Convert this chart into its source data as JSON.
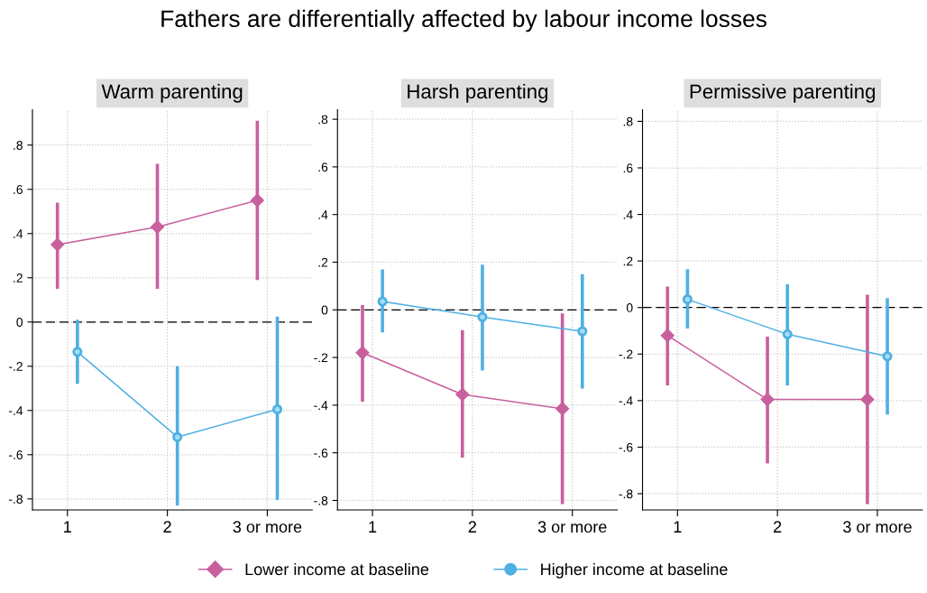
{
  "chart_data": [
    {
      "type": "line",
      "title": "Warm parenting",
      "annotations": [
        "Fathers are differentially affected by labour income losses"
      ],
      "categories": [
        "1",
        "2",
        "3 or more"
      ],
      "ylim": [
        -0.85,
        0.96
      ],
      "yticks": [
        {
          "value": -0.8,
          "label": "-.8"
        },
        {
          "value": -0.6,
          "label": "-.6"
        },
        {
          "value": -0.4,
          "label": "-.4"
        },
        {
          "value": -0.2,
          "label": "-.2"
        },
        0,
        {
          "value": 0.2,
          "label": ".2"
        },
        {
          "value": 0.4,
          "label": ".4"
        },
        {
          "value": 0.6,
          "label": ".6"
        },
        {
          "value": 0.8,
          "label": ".8"
        }
      ],
      "grid": true,
      "legend": "bottom",
      "ref_lines": [
        {
          "axis": "y",
          "value": 0,
          "line_style": "dashed",
          "color": "#000000"
        }
      ],
      "series": [
        {
          "name": "Lower income at baseline",
          "color": "#c8609e",
          "marker": "diamond",
          "values": [
            0.35,
            0.43,
            0.55
          ],
          "errors": [
            [
              0.15,
              0.54
            ],
            [
              0.15,
              0.715
            ],
            [
              0.19,
              0.91
            ]
          ]
        },
        {
          "name": "Higher income at baseline",
          "color": "#4fb0e3",
          "marker": "circle",
          "values": [
            -0.135,
            -0.52,
            -0.395
          ],
          "errors": [
            [
              -0.28,
              0.01
            ],
            [
              -0.83,
              -0.2
            ],
            [
              -0.805,
              0.025
            ]
          ]
        }
      ]
    },
    {
      "type": "line",
      "title": "Harsh parenting",
      "categories": [
        "1",
        "2",
        "3 or more"
      ],
      "ylim": [
        -0.84,
        0.84
      ],
      "yticks": [
        {
          "value": -0.8,
          "label": "-.8"
        },
        {
          "value": -0.6,
          "label": "-.6"
        },
        {
          "value": -0.4,
          "label": "-.4"
        },
        {
          "value": -0.2,
          "label": "-.2"
        },
        0,
        {
          "value": 0.2,
          "label": ".2"
        },
        {
          "value": 0.4,
          "label": ".4"
        },
        {
          "value": 0.6,
          "label": ".6"
        },
        {
          "value": 0.8,
          "label": ".8"
        }
      ],
      "grid": true,
      "ref_lines": [
        {
          "axis": "y",
          "value": 0,
          "line_style": "dashed",
          "color": "#000000"
        }
      ],
      "series": [
        {
          "color": "#c8609e",
          "marker": "diamond",
          "values": [
            -0.18,
            -0.355,
            -0.415
          ],
          "errors": [
            [
              -0.385,
              0.02
            ],
            [
              -0.62,
              -0.085
            ],
            [
              -0.815,
              -0.015
            ]
          ]
        },
        {
          "color": "#4fb0e3",
          "marker": "circle",
          "values": [
            0.035,
            -0.03,
            -0.09
          ],
          "errors": [
            [
              -0.095,
              0.17
            ],
            [
              -0.255,
              0.19
            ],
            [
              -0.33,
              0.15
            ]
          ]
        }
      ]
    },
    {
      "type": "line",
      "title": "Permissive parenting",
      "categories": [
        "1",
        "2",
        "3 or more"
      ],
      "ylim": [
        -0.87,
        0.85
      ],
      "yticks": [
        {
          "value": -0.8,
          "label": "-.8"
        },
        {
          "value": -0.6,
          "label": "-.6"
        },
        {
          "value": -0.4,
          "label": "-.4"
        },
        {
          "value": -0.2,
          "label": "-.2"
        },
        0,
        {
          "value": 0.2,
          "label": ".2"
        },
        {
          "value": 0.4,
          "label": ".4"
        },
        {
          "value": 0.6,
          "label": ".6"
        },
        {
          "value": 0.8,
          "label": ".8"
        }
      ],
      "grid": true,
      "ref_lines": [
        {
          "axis": "y",
          "value": 0,
          "line_style": "dashed",
          "color": "#000000"
        }
      ],
      "series": [
        {
          "color": "#c8609e",
          "marker": "diamond",
          "values": [
            -0.12,
            -0.395,
            -0.395
          ],
          "errors": [
            [
              -0.335,
              0.09
            ],
            [
              -0.67,
              -0.125
            ],
            [
              -0.845,
              0.055
            ]
          ]
        },
        {
          "color": "#4fb0e3",
          "marker": "circle",
          "values": [
            0.035,
            -0.115,
            -0.21
          ],
          "errors": [
            [
              -0.09,
              0.165
            ],
            [
              -0.335,
              0.1
            ],
            [
              -0.46,
              0.04
            ]
          ]
        }
      ]
    }
  ]
}
